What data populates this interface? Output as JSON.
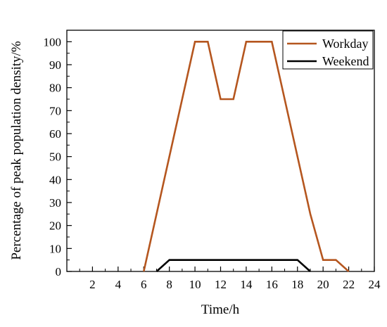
{
  "chart_data": {
    "type": "line",
    "title": "",
    "xlabel": "Time/h",
    "ylabel": "Percentage of peak population density/%",
    "xlim": [
      0,
      24
    ],
    "ylim": [
      0,
      105
    ],
    "xticks": [
      2,
      4,
      6,
      8,
      10,
      12,
      14,
      16,
      18,
      20,
      22,
      24
    ],
    "yticks": [
      0,
      10,
      20,
      30,
      40,
      50,
      60,
      70,
      80,
      90,
      100
    ],
    "grid": false,
    "legend_position": "top-right",
    "series": [
      {
        "name": "Workday",
        "color": "#b5561f",
        "x": [
          6,
          10,
          11,
          12,
          13,
          14,
          16,
          19,
          20,
          21,
          22
        ],
        "y": [
          0,
          100,
          100,
          75,
          75,
          100,
          100,
          25,
          5,
          5,
          0
        ]
      },
      {
        "name": "Weekend",
        "color": "#000000",
        "x": [
          7,
          8,
          18,
          19
        ],
        "y": [
          0,
          5,
          5,
          0
        ]
      }
    ]
  }
}
